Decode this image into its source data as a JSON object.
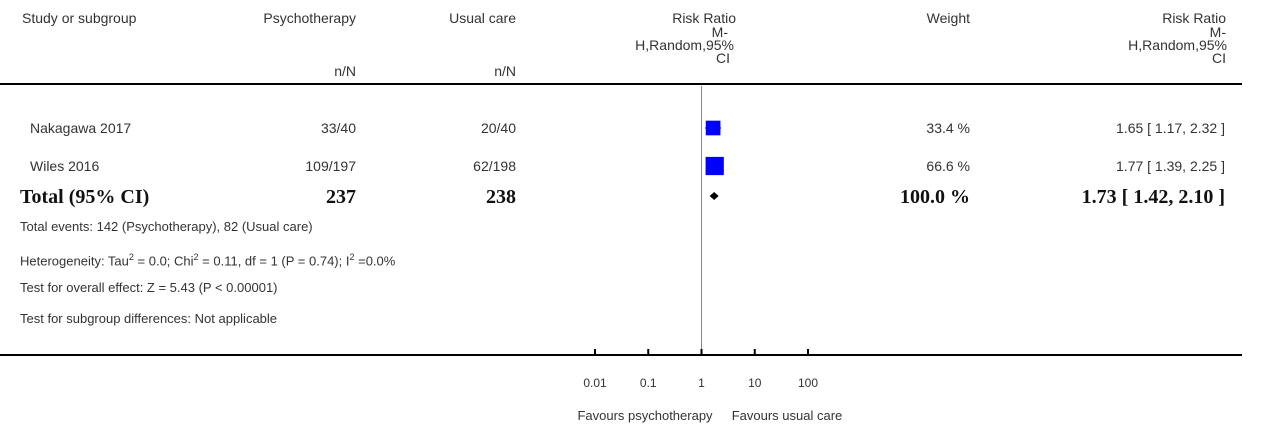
{
  "header": {
    "study": "Study or subgroup",
    "exp_group": "Psychotherapy",
    "ctl_group": "Usual care",
    "exp_nN": "n/N",
    "ctl_nN": "n/N",
    "rr_title": "Risk Ratio",
    "rr_method_1": "M-",
    "rr_method_2": "H,Random,95%",
    "rr_method_3": "CI",
    "weight": "Weight",
    "rr2_title": "Risk Ratio",
    "rr2_method_1": "M-",
    "rr2_method_2": "H,Random,95%",
    "rr2_method_3": "CI"
  },
  "studies": [
    {
      "name": "Nakagawa 2017",
      "exp": "33/40",
      "ctl": "20/40",
      "weight": "33.4 %",
      "ci_text": "1.65 [ 1.17, 2.32 ]"
    },
    {
      "name": "Wiles 2016",
      "exp": "109/197",
      "ctl": "62/198",
      "weight": "66.6 %",
      "ci_text": "1.77 [ 1.39, 2.25 ]"
    }
  ],
  "total": {
    "label": "Total (95% CI)",
    "exp": "237",
    "ctl": "238",
    "weight": "100.0 %",
    "ci_text": "1.73 [ 1.42, 2.10 ]"
  },
  "notes": {
    "events": "Total events: 142 (Psychotherapy), 82 (Usual care)",
    "heterogeneity_a": "Heterogeneity: Tau",
    "heterogeneity_b": " = 0.0; Chi",
    "heterogeneity_c": " = 0.11, df = 1 (P = 0.74); I",
    "heterogeneity_d": " =0.0%",
    "sup2": "2",
    "overall": "Test for overall effect: Z = 5.43 (P < 0.00001)",
    "subgroup": "Test for subgroup differences: Not applicable"
  },
  "axis": {
    "ticks": [
      "0.01",
      "0.1",
      "1",
      "10",
      "100"
    ],
    "favours_left": "Favours psychotherapy",
    "favours_right": "Favours usual care"
  },
  "chart_data": {
    "type": "forest",
    "scale": "log",
    "xlim": [
      0.01,
      100
    ],
    "reference_line": 1,
    "tick_values": [
      0.01,
      0.1,
      1,
      10,
      100
    ],
    "series": [
      {
        "name": "Nakagawa 2017",
        "estimate": 1.65,
        "lower": 1.17,
        "upper": 2.32,
        "weight": 33.4
      },
      {
        "name": "Wiles 2016",
        "estimate": 1.77,
        "lower": 1.39,
        "upper": 2.25,
        "weight": 66.6
      }
    ],
    "pooled": {
      "estimate": 1.73,
      "lower": 1.42,
      "upper": 2.1
    },
    "colors": {
      "square": "#0000ff",
      "diamond": "#000000",
      "axis": "#000000",
      "refline": "#888888"
    }
  }
}
